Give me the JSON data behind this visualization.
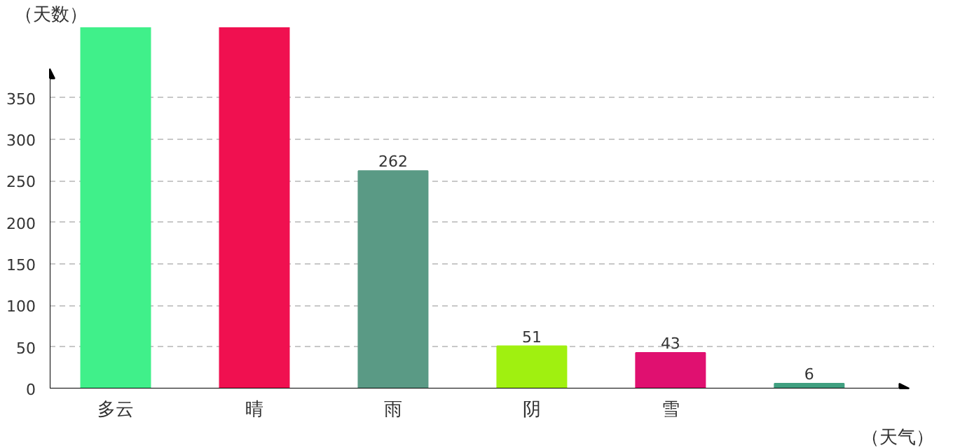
{
  "chart_data": {
    "type": "bar",
    "xlabel": "（天气）",
    "ylabel": "（天数）",
    "categories": [
      "多云",
      "晴",
      "雨",
      "阴",
      "雪",
      null
    ],
    "values": [
      435,
      435,
      262,
      51,
      43,
      6
    ],
    "colors": [
      "#40f08a",
      "#f01050",
      "#5a9a85",
      "#a0f010",
      "#e01070",
      "#40a080"
    ],
    "value_labels": [
      null,
      null,
      "262",
      "51",
      "43",
      "6"
    ],
    "ylim": [
      0,
      435
    ],
    "yticks": [
      0,
      50,
      100,
      150,
      200,
      250,
      300,
      350
    ],
    "grid": "y"
  }
}
